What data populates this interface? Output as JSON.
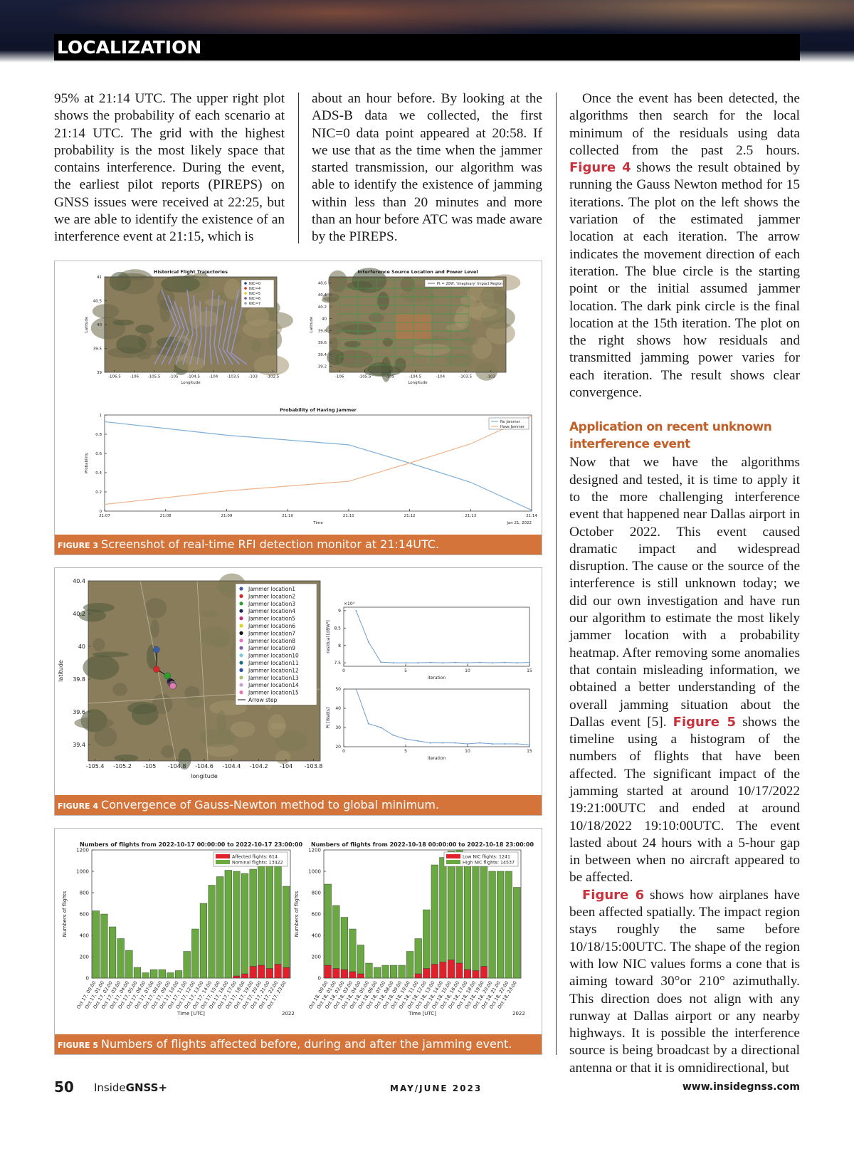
{
  "header": {
    "section": "LOCALIZATION"
  },
  "column1": "95% at 21:14 UTC. The upper right plot shows the probability of each scenario at 21:14 UTC. The grid with the highest probability is the most likely space that contains interference. During the event, the earliest pilot reports (PIREPS) on GNSS issues were received at 22:25, but we are able to identify the existence of an interference event at 21:15, which is",
  "column2": "about an hour before. By looking at the ADS-B data we collected, the first NIC=0 data point appeared at 20:58. If we use that as the time when the jammer started transmission, our algorithm was able to identify the existence of jamming within less than 20 minutes and more than an hour before ATC was made aware by the PIREPS.",
  "column3": {
    "paragraph1": [
      "Once the event has been detected, the algorithms then search for the local minimum of the residuals using data collected from the past 2.5 hours.",
      "Figure 4",
      "shows the result obtained by running the Gauss Newton method for 15 iterations. The plot on the left shows the variation of the estimated jammer location at each iteration. The arrow indicates the movement direction of each iteration. The blue circle is the starting point or the initial assumed jammer location. The dark pink circle is the final location at the 15th iteration. The plot on the right shows how residuals and transmitted jamming power varies for each iteration. The result shows clear convergence."
    ],
    "heading": "Application on recent unknown interference event",
    "paragraph2": [
      "Now that we have the algorithms designed and tested, it is time to apply it to the more challenging interference event that happened near Dallas airport in October 2022. This event caused dramatic impact and widespread disruption. The cause or the source of the interference is still unknown today; we did our own investigation and have run our algorithm to estimate the most likely jammer location with a probability heatmap. After removing some anomalies that contain misleading information, we obtained a better understanding of the overall jamming situation about the Dallas event [5].",
      "Figure 5",
      "shows the timeline using a histogram of the numbers of flights that have been affected. The significant impact of the jamming started at around 10/17/2022 19:21:00UTC and ended at around 10/18/2022 19:10:00UTC. The event lasted about 24 hours with a 5-hour gap in between when no aircraft appeared to be affected."
    ],
    "paragraph3": [
      "Figure 6",
      "shows how airplanes have been affected spatially. The impact region stays roughly the same before 10/18/15:00UTC. The shape of the region with low NIC values forms a cone that is aiming toward 30°or 210° azimuthally. This direction does not align with any runway at Dallas airport or any nearby highways. It is possible the interference source is being broadcast by a directional antenna or that it is omnidirectional, but"
    ]
  },
  "figure3": {
    "caption_label": "FIGURE 3",
    "caption": "Screenshot of real-time RFI detection monitor at 21:14UTC.",
    "map_left": {
      "title": "Historical Flight Trajectories",
      "x_label": "Longitude",
      "y_label": "Latitude",
      "xlim": [
        -106.75,
        -102.4
      ],
      "xticks": [
        -106.5,
        -106,
        -105.5,
        -105,
        -104.5,
        -104,
        -103.5,
        -103,
        -102.5
      ],
      "ylim": [
        39,
        41
      ],
      "yticks": [
        39,
        39.5,
        40,
        40.5,
        41
      ],
      "legend": [
        {
          "name": "NIC=0",
          "color": "#2b3c9e"
        },
        {
          "name": "NIC=4",
          "color": "#d62728"
        },
        {
          "name": "NIC=5",
          "color": "#e8c81e"
        },
        {
          "name": "NIC=6",
          "color": "#7a4fa0"
        },
        {
          "name": "NIC=7",
          "color": "#9aa0a8"
        }
      ]
    },
    "map_right": {
      "title": "Interference Source Location and Power Level",
      "x_label": "Longitude",
      "y_label": "Latitude",
      "xlim": [
        -106.2,
        -102.7
      ],
      "xticks": [
        -106,
        -105.5,
        -105,
        -104.5,
        -104,
        -103.5,
        -103
      ],
      "ylim": [
        39.1,
        40.7
      ],
      "yticks": [
        39.2,
        39.4,
        39.6,
        39.8,
        40,
        40.2,
        40.4,
        40.6
      ],
      "legend": "Pt = 20W, 'imaginary' Impact Region"
    },
    "chart": {
      "type": "line",
      "title": "Probability of Having Jammer",
      "x_label": "Time",
      "y_label": "Probability",
      "date_label": "Jan 21, 2022",
      "categories": [
        "21:07",
        "21:08",
        "21:09",
        "21:10",
        "21:11",
        "21:12",
        "21:13",
        "21:14"
      ],
      "ylim": [
        0,
        1
      ],
      "yticks": [
        0,
        0.2,
        0.4,
        0.6,
        0.8,
        1
      ],
      "series": [
        {
          "name": "No Jammer",
          "color": "#7fb0d8",
          "values": [
            0.93,
            0.86,
            0.79,
            0.74,
            0.69,
            0.5,
            0.3,
            0.01
          ]
        },
        {
          "name": "Have Jammer",
          "color": "#f0b48c",
          "values": [
            0.07,
            0.14,
            0.21,
            0.26,
            0.31,
            0.5,
            0.7,
            0.99
          ]
        }
      ]
    }
  },
  "figure4": {
    "caption_label": "FIGURE 4",
    "caption": "Convergence of Gauss-Newton method to global minimum.",
    "map": {
      "type": "scatter",
      "x_label": "longitude",
      "y_label": "latitude",
      "xlim": [
        -105.45,
        -103.75
      ],
      "xticks": [
        -105.4,
        -105.2,
        -105,
        -104.8,
        -104.6,
        -104.4,
        -104.2,
        -104,
        -103.8
      ],
      "ylim": [
        39.3,
        40.4
      ],
      "yticks": [
        39.4,
        39.6,
        39.8,
        40,
        40.2,
        40.4
      ],
      "points": [
        {
          "name": "Jammer location1",
          "color": "#3b5ba8",
          "lon": -104.95,
          "lat": 39.98
        },
        {
          "name": "Jammer location2",
          "color": "#d62728",
          "lon": -104.95,
          "lat": 39.86
        },
        {
          "name": "Jammer location3",
          "color": "#2ca02c",
          "lon": -104.87,
          "lat": 39.82
        },
        {
          "name": "Jammer location4",
          "color": "#1a2a5a",
          "lon": -104.85,
          "lat": 39.785
        },
        {
          "name": "Jammer location5",
          "color": "#c0307a",
          "lon": -104.845,
          "lat": 39.775
        },
        {
          "name": "Jammer location6",
          "color": "#e6d020",
          "lon": -104.84,
          "lat": 39.77
        },
        {
          "name": "Jammer location7",
          "color": "#111111",
          "lon": -104.84,
          "lat": 39.78
        },
        {
          "name": "Jammer location8",
          "color": "#e377c2",
          "lon": -104.835,
          "lat": 39.77
        },
        {
          "name": "Jammer location9",
          "color": "#7f5fa8",
          "lon": -104.835,
          "lat": 39.765
        },
        {
          "name": "Jammer location10",
          "color": "#7fc7e0",
          "lon": -104.83,
          "lat": 39.765
        },
        {
          "name": "Jammer location11",
          "color": "#1f6f8b",
          "lon": -104.83,
          "lat": 39.76
        },
        {
          "name": "Jammer location12",
          "color": "#2a4fa0",
          "lon": -104.83,
          "lat": 39.762
        },
        {
          "name": "Jammer location13",
          "color": "#a7c06a",
          "lon": -104.828,
          "lat": 39.76
        },
        {
          "name": "Jammer location14",
          "color": "#c9a0d6",
          "lon": -104.828,
          "lat": 39.758
        },
        {
          "name": "Jammer location15",
          "color": "#e07bb5",
          "lon": -104.83,
          "lat": 39.758
        }
      ],
      "arrow_legend": "Arrow step"
    },
    "residual": {
      "type": "line",
      "x_label": "iteration",
      "y_label": "residual [dBW²]",
      "scale_label": "×10⁴",
      "xlim": [
        0,
        15
      ],
      "xticks": [
        0,
        5,
        10,
        15
      ],
      "ylim": [
        7.4,
        9.1
      ],
      "yticks": [
        7.5,
        8,
        8.5,
        9
      ],
      "x": [
        1,
        2,
        3,
        4,
        5,
        6,
        7,
        8,
        9,
        10,
        11,
        12,
        13,
        14,
        15
      ],
      "values": [
        9.0,
        8.1,
        7.52,
        7.5,
        7.5,
        7.5,
        7.51,
        7.5,
        7.51,
        7.5,
        7.51,
        7.5,
        7.51,
        7.5,
        7.51
      ],
      "color": "#6f9fcf"
    },
    "power": {
      "type": "line",
      "x_label": "iteration",
      "y_label": "Pt [Watts]",
      "xlim": [
        0,
        15
      ],
      "xticks": [
        0,
        5,
        10,
        15
      ],
      "ylim": [
        20,
        50
      ],
      "yticks": [
        20,
        30,
        40,
        50
      ],
      "x": [
        1,
        2,
        3,
        4,
        5,
        6,
        7,
        8,
        9,
        10,
        11,
        12,
        13,
        14,
        15
      ],
      "values": [
        50,
        32,
        30,
        26,
        24,
        23,
        22,
        22,
        22,
        21.5,
        22,
        21.5,
        21.5,
        21.5,
        21
      ],
      "color": "#6f9fcf"
    }
  },
  "figure5": {
    "caption_label": "FIGURE 5",
    "caption": "Numbers of flights affected before, during and after the jamming event.",
    "charts": [
      {
        "type": "stacked-bar",
        "title": "Numbers of flights from 2022-10-17 00:00:00 to 2022-10-17 23:00:00",
        "x_label": "Time [UTC]",
        "y_label": "Numbers of flights",
        "year_label": "2022",
        "ylim": [
          0,
          1200
        ],
        "yticks": [
          0,
          200,
          400,
          600,
          800,
          1000,
          1200
        ],
        "categories": [
          "Oct 17, 00:00",
          "Oct 17, 01:00",
          "Oct 17, 02:00",
          "Oct 17, 03:00",
          "Oct 17, 04:00",
          "Oct 17, 05:00",
          "Oct 17, 06:00",
          "Oct 17, 07:00",
          "Oct 17, 08:00",
          "Oct 17, 09:00",
          "Oct 17, 10:00",
          "Oct 17, 11:00",
          "Oct 17, 12:00",
          "Oct 17, 13:00",
          "Oct 17, 14:00",
          "Oct 17, 15:00",
          "Oct 17, 16:00",
          "Oct 17, 17:00",
          "Oct 17, 18:00",
          "Oct 17, 19:00",
          "Oct 17, 20:00",
          "Oct 17, 21:00",
          "Oct 17, 22:00",
          "Oct 17, 23:00"
        ],
        "series": [
          {
            "name": "Affected flights: 614",
            "color": "#e0202a",
            "values": [
              0,
              0,
              0,
              0,
              0,
              0,
              0,
              0,
              0,
              0,
              0,
              0,
              0,
              0,
              0,
              0,
              0,
              20,
              40,
              110,
              120,
              90,
              130,
              100
            ]
          },
          {
            "name": "Nominal flights: 13422",
            "color": "#6aa842",
            "values": [
              630,
              600,
              480,
              370,
              260,
              100,
              50,
              80,
              80,
              50,
              70,
              250,
              460,
              700,
              870,
              950,
              1010,
              980,
              940,
              910,
              1000,
              1020,
              920,
              760
            ]
          }
        ]
      },
      {
        "type": "stacked-bar",
        "title": "Numbers of flights from 2022-10-18 00:00:00 to 2022-10-18 23:00:00",
        "x_label": "Time [UTC]",
        "y_label": "Numbers of flights",
        "year_label": "2022",
        "ylim": [
          0,
          1200
        ],
        "yticks": [
          0,
          200,
          400,
          600,
          800,
          1000,
          1200
        ],
        "categories": [
          "Oct 18, 00:00",
          "Oct 18, 01:00",
          "Oct 18, 02:00",
          "Oct 18, 03:00",
          "Oct 18, 04:00",
          "Oct 18, 05:00",
          "Oct 18, 06:00",
          "Oct 18, 07:00",
          "Oct 18, 08:00",
          "Oct 18, 09:00",
          "Oct 18, 10:00",
          "Oct 18, 11:00",
          "Oct 18, 12:00",
          "Oct 18, 13:00",
          "Oct 18, 14:00",
          "Oct 18, 15:00",
          "Oct 18, 16:00",
          "Oct 18, 17:00",
          "Oct 18, 18:00",
          "Oct 18, 19:00",
          "Oct 18, 20:00",
          "Oct 18, 21:00",
          "Oct 18, 22:00",
          "Oct 18, 23:00"
        ],
        "series": [
          {
            "name": "Low NIC flights: 1241",
            "color": "#e0202a",
            "values": [
              120,
              90,
              80,
              60,
              40,
              0,
              0,
              0,
              0,
              0,
              0,
              40,
              90,
              130,
              150,
              170,
              140,
              80,
              70,
              110,
              0,
              0,
              0,
              0
            ]
          },
          {
            "name": "High NIC flights: 14537",
            "color": "#6aa842",
            "values": [
              760,
              590,
              490,
              400,
              270,
              140,
              100,
              120,
              120,
              120,
              250,
              330,
              550,
              930,
              980,
              1020,
              1060,
              1090,
              1080,
              1000,
              1000,
              1000,
              1000,
              850
            ]
          }
        ]
      }
    ]
  },
  "footer": {
    "page": "50",
    "brand": [
      "Inside",
      "GNSS+"
    ],
    "issue": "MAY/JUNE 2023",
    "url": "www.insidegnss.com"
  }
}
